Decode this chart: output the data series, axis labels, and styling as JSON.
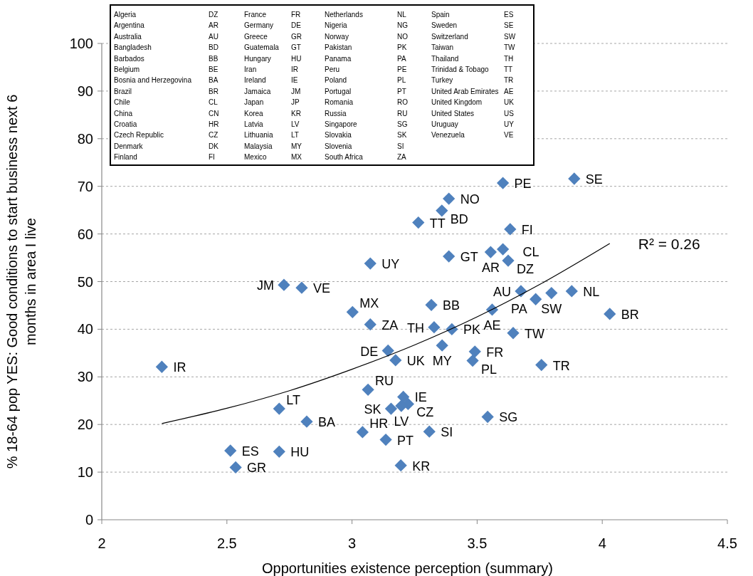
{
  "chart_data": {
    "type": "scatter",
    "xlabel": "Opportunities existence perception (summary)",
    "ylabel": "% 18-64 pop YES: Good conditions to start business next 6\nmonths in area I live",
    "xlim": [
      2,
      4.5
    ],
    "xticks": [
      2,
      2.5,
      3,
      3.5,
      4,
      4.5
    ],
    "ylim": [
      0,
      100
    ],
    "yticks": [
      0,
      10,
      20,
      30,
      40,
      50,
      60,
      70,
      80,
      90,
      100
    ],
    "grid": "y",
    "series": [
      {
        "marker": "diamond",
        "color": "#4f81bd",
        "x": [
          2.24,
          2.728,
          2.799,
          3.002,
          3.073,
          3.073,
          3.144,
          3.174,
          3.064,
          3.205,
          3.224,
          3.197,
          3.156,
          2.709,
          2.819,
          3.042,
          3.135,
          2.514,
          2.709,
          2.535,
          3.195,
          3.265,
          3.603,
          3.888,
          3.387,
          3.359,
          3.632,
          3.387,
          3.554,
          3.603,
          3.624,
          3.675,
          3.797,
          3.878,
          3.734,
          4.03,
          3.56,
          3.317,
          3.328,
          3.399,
          3.644,
          3.36,
          3.491,
          3.482,
          3.757,
          3.542,
          3.309
        ],
        "values": [
          32.1,
          49.3,
          48.7,
          43.6,
          41.0,
          53.8,
          35.5,
          33.5,
          27.3,
          25.8,
          24.3,
          23.9,
          23.3,
          23.3,
          20.6,
          18.4,
          16.8,
          14.5,
          14.3,
          11.0,
          11.4,
          62.4,
          70.7,
          71.6,
          67.4,
          64.9,
          61.0,
          55.3,
          56.2,
          56.8,
          54.4,
          48.0,
          47.6,
          48.0,
          46.3,
          43.2,
          44.1,
          45.1,
          40.4,
          40.0,
          39.2,
          36.6,
          35.3,
          33.4,
          32.5,
          21.6,
          18.5
        ]
      },
      {
        "type": "line",
        "marker": "none",
        "color": "#000000",
        "x": [
          2.24,
          2.5,
          2.75,
          3,
          3.25,
          3.5,
          3.75,
          4.03
        ],
        "values": [
          20.2,
          23.4,
          27.1,
          31.6,
          36.7,
          42.6,
          49.4,
          58.0
        ]
      }
    ],
    "annotations": [
      "R² = 0.26",
      "Algeria",
      "DZ",
      "Argentina",
      "AR",
      "Australia",
      "AU",
      "Bangladesh",
      "BD",
      "Barbados",
      "BB",
      "Belgium",
      "BE",
      "Bosnia and Herzegovina",
      "BA",
      "Brazil",
      "BR",
      "Chile",
      "CL",
      "China",
      "CN",
      "Croatia",
      "HR",
      "Czech Republic",
      "CZ",
      "Denmark",
      "DK",
      "Finland",
      "FI",
      "France",
      "FR",
      "Germany",
      "DE",
      "Greece",
      "GR",
      "Guatemala",
      "GT",
      "Hungary",
      "HU",
      "Iran",
      "IR",
      "Ireland",
      "IE",
      "Jamaica",
      "JM",
      "Japan",
      "JP",
      "Korea",
      "KR",
      "Latvia",
      "LV",
      "Lithuania",
      "LT",
      "Malaysia",
      "MY",
      "Mexico",
      "MX",
      "Netherlands",
      "NL",
      "Nigeria",
      "NG",
      "Norway",
      "NO",
      "Pakistan",
      "PK",
      "Panama",
      "PA",
      "Peru",
      "PE",
      "Poland",
      "PL",
      "Portugal",
      "PT",
      "Romania",
      "RO",
      "Russia",
      "RU",
      "Singapore",
      "SG",
      "Slovakia",
      "SK",
      "Slovenia",
      "SI",
      "South Africa",
      "ZA",
      "Spain",
      "ES",
      "Sweden",
      "SE",
      "Switzerland",
      "SW",
      "Taiwan",
      "TW",
      "Thailand",
      "TH",
      "Trinidad & Tobago",
      "TT",
      "Turkey",
      "TR",
      "United Arab Emirates",
      "AE",
      "United Kingdom",
      "UK",
      "United States",
      "US",
      "Uruguay",
      "UY",
      "Venezuela",
      "VE",
      {
        "text": "IR",
        "x": 2.24,
        "y": 32.1
      },
      {
        "text": "JM",
        "x": 2.728,
        "y": 49.3
      },
      {
        "text": "VE",
        "x": 2.799,
        "y": 48.7
      },
      {
        "text": "MX",
        "x": 3.002,
        "y": 43.6
      },
      {
        "text": "ZA",
        "x": 3.073,
        "y": 41.0
      },
      {
        "text": "UY",
        "x": 3.073,
        "y": 53.8
      },
      {
        "text": "DE",
        "x": 3.144,
        "y": 35.5
      },
      {
        "text": "UK",
        "x": 3.174,
        "y": 33.5
      },
      {
        "text": "RU",
        "x": 3.064,
        "y": 27.3
      },
      {
        "text": "IE",
        "x": 3.205,
        "y": 25.8
      },
      {
        "text": "CZ",
        "x": 3.224,
        "y": 24.3
      },
      {
        "text": "LV",
        "x": 3.197,
        "y": 23.9
      },
      {
        "text": "SK",
        "x": 3.156,
        "y": 23.3
      },
      {
        "text": "LT",
        "x": 2.709,
        "y": 23.3
      },
      {
        "text": "BA",
        "x": 2.819,
        "y": 20.6
      },
      {
        "text": "HR",
        "x": 3.042,
        "y": 18.4
      },
      {
        "text": "PT",
        "x": 3.135,
        "y": 16.8
      },
      {
        "text": "ES",
        "x": 2.514,
        "y": 14.5
      },
      {
        "text": "HU",
        "x": 2.709,
        "y": 14.3
      },
      {
        "text": "GR",
        "x": 2.535,
        "y": 11.0
      },
      {
        "text": "KR",
        "x": 3.195,
        "y": 11.4
      },
      {
        "text": "TT",
        "x": 3.265,
        "y": 62.4
      },
      {
        "text": "PE",
        "x": 3.603,
        "y": 70.7
      },
      {
        "text": "SE",
        "x": 3.888,
        "y": 71.6
      },
      {
        "text": "NO",
        "x": 3.387,
        "y": 67.4
      },
      {
        "text": "BD",
        "x": 3.359,
        "y": 64.9
      },
      {
        "text": "FI",
        "x": 3.632,
        "y": 61.0
      },
      {
        "text": "GT",
        "x": 3.387,
        "y": 55.3
      },
      {
        "text": "AR",
        "x": 3.554,
        "y": 56.2
      },
      {
        "text": "CL",
        "x": 3.603,
        "y": 56.8
      },
      {
        "text": "DZ",
        "x": 3.624,
        "y": 54.4
      },
      {
        "text": "AU",
        "x": 3.675,
        "y": 48.0
      },
      {
        "text": "SW",
        "x": 3.797,
        "y": 47.6
      },
      {
        "text": "NL",
        "x": 3.878,
        "y": 48.0
      },
      {
        "text": "PA",
        "x": 3.734,
        "y": 46.3
      },
      {
        "text": "BR",
        "x": 4.03,
        "y": 43.2
      },
      {
        "text": "AE",
        "x": 3.56,
        "y": 44.1
      },
      {
        "text": "BB",
        "x": 3.317,
        "y": 45.1
      },
      {
        "text": "TH",
        "x": 3.328,
        "y": 40.4
      },
      {
        "text": "PK",
        "x": 3.399,
        "y": 40.0
      },
      {
        "text": "TW",
        "x": 3.644,
        "y": 39.2
      },
      {
        "text": "MY",
        "x": 3.36,
        "y": 36.6
      },
      {
        "text": "FR",
        "x": 3.491,
        "y": 35.3
      },
      {
        "text": "PL",
        "x": 3.482,
        "y": 33.4
      },
      {
        "text": "TR",
        "x": 3.757,
        "y": 32.5
      },
      {
        "text": "SG",
        "x": 3.542,
        "y": 21.6
      },
      {
        "text": "SI",
        "x": 3.309,
        "y": 18.5
      }
    ]
  }
}
